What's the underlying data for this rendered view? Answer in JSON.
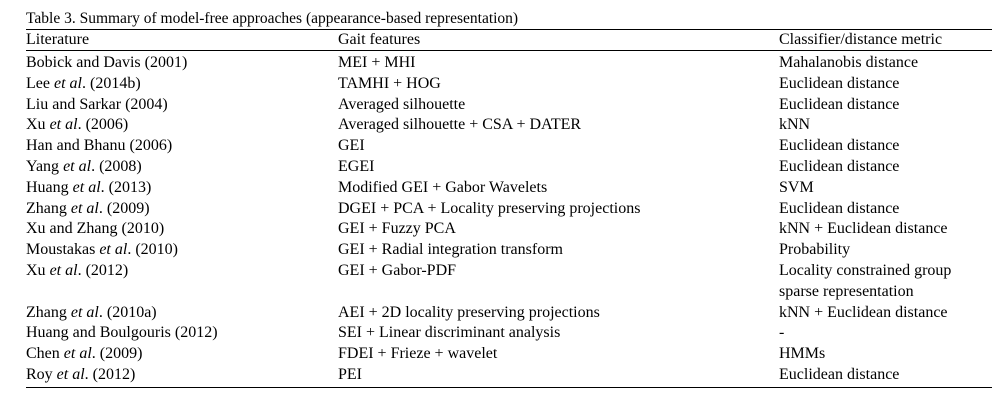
{
  "caption": "Table 3. Summary of model-free approaches (appearance-based representation)",
  "headers": {
    "literature": "Literature",
    "features": "Gait features",
    "classifier": "Classifier/distance metric"
  },
  "rows": [
    {
      "author": "Bobick and Davis",
      "etal": "",
      "year": " (2001)",
      "features": "MEI + MHI",
      "classifier": "Mahalanobis distance"
    },
    {
      "author": "Lee ",
      "etal": "et al",
      "year": ". (2014b)",
      "features": "TAMHI + HOG",
      "classifier": "Euclidean distance"
    },
    {
      "author": "Liu and Sarkar",
      "etal": "",
      "year": " (2004)",
      "features": "Averaged silhouette",
      "classifier": "Euclidean distance"
    },
    {
      "author": "Xu ",
      "etal": "et al",
      "year": ". (2006)",
      "features": "Averaged silhouette + CSA + DATER",
      "classifier": "kNN"
    },
    {
      "author": "Han and Bhanu",
      "etal": "",
      "year": " (2006)",
      "features": "GEI",
      "classifier": "Euclidean distance"
    },
    {
      "author": "Yang ",
      "etal": "et al",
      "year": ". (2008)",
      "features": "EGEI",
      "classifier": "Euclidean distance"
    },
    {
      "author": "Huang ",
      "etal": "et al",
      "year": ". (2013)",
      "features": "Modified GEI + Gabor Wavelets",
      "classifier": "SVM"
    },
    {
      "author": "Zhang ",
      "etal": "et al",
      "year": ". (2009)",
      "features": "DGEI + PCA + Locality preserving projections",
      "classifier": "Euclidean distance"
    },
    {
      "author": "Xu and Zhang",
      "etal": "",
      "year": " (2010)",
      "features": "GEI + Fuzzy PCA",
      "classifier": "kNN + Euclidean distance"
    },
    {
      "author": "Moustakas ",
      "etal": "et al",
      "year": ". (2010)",
      "features": "GEI + Radial integration transform",
      "classifier": "Probability"
    },
    {
      "author": "Xu ",
      "etal": "et al",
      "year": ". (2012)",
      "features": "GEI + Gabor-PDF",
      "classifier": "Locality constrained group sparse representation"
    },
    {
      "author": "Zhang ",
      "etal": "et al",
      "year": ". (2010a)",
      "features": "AEI + 2D locality preserving projections",
      "classifier": "kNN + Euclidean distance"
    },
    {
      "author": "Huang and Boulgouris",
      "etal": "",
      "year": " (2012)",
      "features": "SEI + Linear discriminant analysis",
      "classifier": "-"
    },
    {
      "author": "Chen ",
      "etal": "et al",
      "year": ". (2009)",
      "features": "FDEI + Frieze + wavelet",
      "classifier": "HMMs"
    },
    {
      "author": "Roy ",
      "etal": "et al",
      "year": ". (2012)",
      "features": "PEI",
      "classifier": "Euclidean distance"
    }
  ]
}
